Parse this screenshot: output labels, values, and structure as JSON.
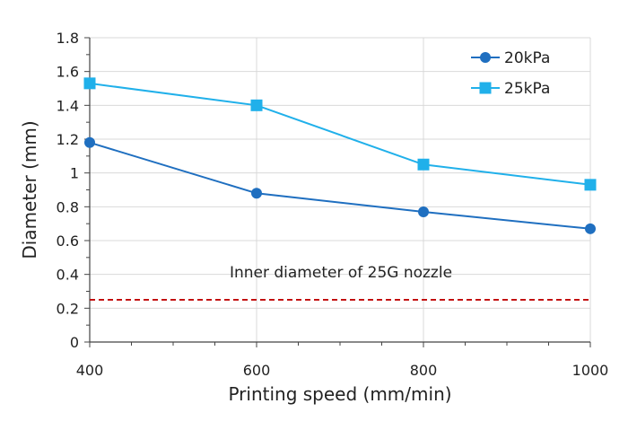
{
  "chart_data": {
    "type": "line",
    "xlabel": "Printing speed (mm/min)",
    "ylabel": "Diameter (mm)",
    "x": [
      400,
      600,
      800,
      1000
    ],
    "xlim": [
      400,
      1000
    ],
    "ylim": [
      0,
      1.8
    ],
    "x_ticks": [
      "400",
      "600",
      "800",
      "1000"
    ],
    "y_ticks": [
      "0",
      "0.2",
      "0.4",
      "0.6",
      "0.8",
      "1",
      "1.2",
      "1.4",
      "1.6",
      "1.8"
    ],
    "grid": true,
    "legend_position": "top-right",
    "series": [
      {
        "name": "20kPa",
        "marker": "circle",
        "color": "#1f6fc0",
        "values": [
          1.18,
          0.88,
          0.77,
          0.67
        ]
      },
      {
        "name": "25kPa",
        "marker": "square",
        "color": "#20b0ea",
        "values": [
          1.53,
          1.4,
          1.05,
          0.93
        ]
      }
    ],
    "reference_line": {
      "y": 0.25,
      "color": "#c00000",
      "style": "dashed",
      "label": "Inner diameter of 25G nozzle"
    }
  }
}
